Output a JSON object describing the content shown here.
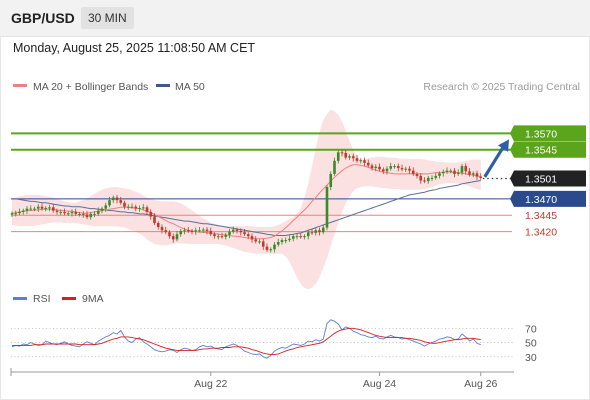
{
  "header": {
    "symbol": "GBP/USD",
    "timeframe": "30 MIN"
  },
  "datetime": "Monday, August 25, 2025 11:08:50 AM CET",
  "price_panel": {
    "legend": [
      {
        "name": "MA 20 + Bollinger Bands",
        "color": "#f08080"
      },
      {
        "name": "MA 50",
        "color": "#3a5a8c"
      }
    ],
    "credit": "Research © 2025 Trading Central"
  },
  "rsi_panel": {
    "legend": [
      {
        "name": "RSI",
        "color": "#5b7fd4"
      },
      {
        "name": "9MA",
        "color": "#d62020"
      }
    ]
  },
  "colors": {
    "resistance": "#5aa51c",
    "support_major": "#2b4a8e",
    "support_minor": "#f08080",
    "support_minor_text": "#c0392b",
    "current": "#333333",
    "arrow": "#2f5ea8",
    "candle_up": "#3a8a2a",
    "candle_down": "#c0392b",
    "band_fill": "#fadcdc",
    "rsi_line": "#5b7fd4",
    "rsi_ma": "#d62020"
  },
  "chart_data": [
    {
      "type": "candlestick",
      "title": "GBP/USD",
      "ylim": [
        1.3343,
        1.3627
      ],
      "x_ticks": [
        "Aug 22",
        "Aug 24",
        "Aug 26"
      ],
      "levels": [
        {
          "label": "1.3570",
          "value": 1.357,
          "kind": "resistance"
        },
        {
          "label": "1.3545",
          "value": 1.3545,
          "kind": "resistance"
        },
        {
          "label": "1.3501",
          "value": 1.3501,
          "kind": "current"
        },
        {
          "label": "1.3470",
          "value": 1.347,
          "kind": "support_major"
        },
        {
          "label": "1.3445",
          "value": 1.3445,
          "kind": "support_minor"
        },
        {
          "label": "1.3420",
          "value": 1.342,
          "kind": "support_minor"
        }
      ],
      "close": [
        1.3448,
        1.3448,
        1.345,
        1.3452,
        1.3455,
        1.3455,
        1.3455,
        1.3458,
        1.3455,
        1.3456,
        1.3457,
        1.3452,
        1.345,
        1.345,
        1.3448,
        1.3448,
        1.345,
        1.3447,
        1.3447,
        1.3446,
        1.3442,
        1.3447,
        1.3447,
        1.3452,
        1.3455,
        1.346,
        1.3468,
        1.3472,
        1.3468,
        1.3464,
        1.3458,
        1.3458,
        1.3458,
        1.3455,
        1.3456,
        1.3457,
        1.345,
        1.3443,
        1.3433,
        1.3427,
        1.3422,
        1.3419,
        1.3413,
        1.3408,
        1.3416,
        1.3421,
        1.3422,
        1.3421,
        1.342,
        1.3422,
        1.3422,
        1.3423,
        1.3421,
        1.3416,
        1.3413,
        1.3413,
        1.3412,
        1.3415,
        1.342,
        1.3423,
        1.3421,
        1.3419,
        1.3416,
        1.3413,
        1.3408,
        1.3405,
        1.3405,
        1.3397,
        1.3392,
        1.3393,
        1.34,
        1.3404,
        1.3407,
        1.3407,
        1.3409,
        1.3413,
        1.3413,
        1.3412,
        1.3413,
        1.3419,
        1.3418,
        1.3422,
        1.3419,
        1.3426,
        1.3488,
        1.3508,
        1.3528,
        1.3541,
        1.354,
        1.3533,
        1.3535,
        1.3532,
        1.3528,
        1.3529,
        1.3525,
        1.3521,
        1.3517,
        1.3519,
        1.3515,
        1.3512,
        1.3516,
        1.352,
        1.352,
        1.3517,
        1.3515,
        1.3516,
        1.3513,
        1.3508,
        1.3505,
        1.3498,
        1.3497,
        1.3502,
        1.3502,
        1.3505,
        1.3509,
        1.3511,
        1.3513,
        1.3513,
        1.3508,
        1.351,
        1.352,
        1.3512,
        1.3507,
        1.3509,
        1.3504,
        1.3502
      ],
      "ma20": [
        1.3448,
        1.3449,
        1.345,
        1.3451,
        1.3452,
        1.3452,
        1.3453,
        1.3453,
        1.3454,
        1.3454,
        1.3454,
        1.3454,
        1.3453,
        1.3452,
        1.3452,
        1.3451,
        1.3451,
        1.345,
        1.3449,
        1.3448,
        1.3448,
        1.3449,
        1.345,
        1.3451,
        1.3452,
        1.3453,
        1.3454,
        1.3455,
        1.3456,
        1.3457,
        1.3457,
        1.3457,
        1.3456,
        1.3456,
        1.3455,
        1.3453,
        1.3451,
        1.3449,
        1.3446,
        1.3443,
        1.344,
        1.3437,
        1.3434,
        1.3432,
        1.3429,
        1.3426,
        1.3424,
        1.3422,
        1.3421,
        1.342,
        1.3419,
        1.3419,
        1.3418,
        1.3418,
        1.3417,
        1.3416,
        1.3415,
        1.3415,
        1.3414,
        1.3413,
        1.3413,
        1.3412,
        1.3411,
        1.341,
        1.341,
        1.3409,
        1.3409,
        1.3409,
        1.341,
        1.3411,
        1.3413,
        1.3417,
        1.3421,
        1.3426,
        1.3431,
        1.3437,
        1.3442,
        1.3448,
        1.3453,
        1.3459,
        1.3466,
        1.3472,
        1.3479,
        1.3485,
        1.3491,
        1.3497,
        1.3503,
        1.3508,
        1.3513,
        1.3517,
        1.352,
        1.3522,
        1.3522,
        1.3521,
        1.352,
        1.3518,
        1.3516,
        1.3514,
        1.3512,
        1.3511,
        1.351,
        1.3509,
        1.3508,
        1.3508,
        1.3508,
        1.3508,
        1.3508,
        1.3508,
        1.3508,
        1.3508,
        1.3508,
        1.3508,
        1.3509,
        1.351,
        1.351,
        1.3511,
        1.3511,
        1.3511,
        1.351,
        1.351,
        1.3509,
        1.3508,
        1.3507,
        1.3506,
        1.3505,
        1.3504
      ],
      "ma50": [
        1.347,
        1.347,
        1.3469,
        1.3468,
        1.3467,
        1.3466,
        1.3466,
        1.3465,
        1.3464,
        1.3464,
        1.3463,
        1.3462,
        1.3461,
        1.346,
        1.3459,
        1.3459,
        1.3458,
        1.3458,
        1.3458,
        1.3457,
        1.3456,
        1.3455,
        1.3455,
        1.3454,
        1.3454,
        1.3453,
        1.3452,
        1.3452,
        1.3451,
        1.345,
        1.345,
        1.3449,
        1.3449,
        1.3448,
        1.3447,
        1.3447,
        1.3446,
        1.3445,
        1.3444,
        1.3443,
        1.3442,
        1.3441,
        1.344,
        1.3439,
        1.3438,
        1.3437,
        1.3436,
        1.3436,
        1.3435,
        1.3434,
        1.3433,
        1.3432,
        1.3432,
        1.3431,
        1.343,
        1.3429,
        1.3428,
        1.3427,
        1.3426,
        1.3425,
        1.3424,
        1.3423,
        1.3422,
        1.3421,
        1.342,
        1.3419,
        1.3418,
        1.3417,
        1.3416,
        1.3415,
        1.3414,
        1.3414,
        1.3414,
        1.3414,
        1.3415,
        1.3416,
        1.3417,
        1.3418,
        1.342,
        1.3422,
        1.3424,
        1.3426,
        1.3428,
        1.343,
        1.3432,
        1.3434,
        1.3436,
        1.3438,
        1.344,
        1.3442,
        1.3444,
        1.3446,
        1.3448,
        1.345,
        1.3452,
        1.3454,
        1.3456,
        1.3458,
        1.346,
        1.3462,
        1.3464,
        1.3466,
        1.3468,
        1.347,
        1.3472,
        1.3474,
        1.3476,
        1.3477,
        1.3478,
        1.3479,
        1.348,
        1.3482,
        1.3483,
        1.3484,
        1.3486,
        1.3487,
        1.3488,
        1.3489,
        1.349,
        1.3491,
        1.3493,
        1.3494,
        1.3495,
        1.3496,
        1.3497,
        1.3498
      ],
      "bb_upper": [
        1.347,
        1.3472,
        1.3474,
        1.3475,
        1.3476,
        1.3476,
        1.3476,
        1.3476,
        1.3475,
        1.3474,
        1.3473,
        1.3472,
        1.347,
        1.3468,
        1.3466,
        1.3465,
        1.3464,
        1.3464,
        1.3466,
        1.3468,
        1.347,
        1.3474,
        1.3478,
        1.3481,
        1.3484,
        1.3486,
        1.3487,
        1.3488,
        1.3488,
        1.3487,
        1.3486,
        1.3485,
        1.3483,
        1.3481,
        1.3478,
        1.3475,
        1.3472,
        1.347,
        1.3468,
        1.3467,
        1.3466,
        1.3466,
        1.3466,
        1.3466,
        1.3465,
        1.3463,
        1.346,
        1.3456,
        1.3452,
        1.3448,
        1.3444,
        1.344,
        1.3437,
        1.3434,
        1.3432,
        1.343,
        1.3429,
        1.3428,
        1.3428,
        1.3428,
        1.3428,
        1.3428,
        1.3428,
        1.3428,
        1.3428,
        1.3427,
        1.3427,
        1.3427,
        1.3427,
        1.3427,
        1.3428,
        1.343,
        1.3433,
        1.3436,
        1.3439,
        1.3442,
        1.3447,
        1.3456,
        1.3472,
        1.3494,
        1.352,
        1.3548,
        1.3572,
        1.359,
        1.36,
        1.3606,
        1.3604,
        1.3598,
        1.3588,
        1.3574,
        1.3558,
        1.3544,
        1.3534,
        1.353,
        1.353,
        1.3532,
        1.3533,
        1.3534,
        1.3534,
        1.3534,
        1.3533,
        1.3533,
        1.3533,
        1.3532,
        1.3531,
        1.3531,
        1.3531,
        1.3531,
        1.3531,
        1.3531,
        1.353,
        1.3529,
        1.3528,
        1.3527,
        1.3526,
        1.3526,
        1.3525,
        1.3525,
        1.3525,
        1.3526,
        1.3527,
        1.3528,
        1.3529,
        1.353,
        1.353,
        1.353
      ],
      "bb_lower": [
        1.343,
        1.3429,
        1.3428,
        1.3428,
        1.3428,
        1.3428,
        1.3429,
        1.343,
        1.3431,
        1.3432,
        1.3433,
        1.3434,
        1.3434,
        1.3434,
        1.3433,
        1.3433,
        1.3433,
        1.3433,
        1.3432,
        1.3431,
        1.343,
        1.3429,
        1.3428,
        1.3428,
        1.3428,
        1.3428,
        1.3428,
        1.3428,
        1.3428,
        1.3427,
        1.3426,
        1.3424,
        1.3422,
        1.342,
        1.3417,
        1.3413,
        1.3408,
        1.3404,
        1.3401,
        1.34,
        1.3399,
        1.3399,
        1.34,
        1.3401,
        1.3402,
        1.3402,
        1.3402,
        1.3401,
        1.3401,
        1.3401,
        1.3401,
        1.3401,
        1.3401,
        1.3401,
        1.3401,
        1.3401,
        1.34,
        1.3399,
        1.3397,
        1.3395,
        1.3393,
        1.3391,
        1.3389,
        1.3388,
        1.3387,
        1.3386,
        1.3386,
        1.3386,
        1.3386,
        1.3386,
        1.3386,
        1.3386,
        1.3386,
        1.3382,
        1.3374,
        1.3362,
        1.335,
        1.334,
        1.3334,
        1.3332,
        1.3334,
        1.334,
        1.335,
        1.3364,
        1.338,
        1.3398,
        1.3416,
        1.3434,
        1.345,
        1.3463,
        1.3474,
        1.3482,
        1.3486,
        1.3488,
        1.3489,
        1.3489,
        1.3489,
        1.3488,
        1.3487,
        1.3486,
        1.3486,
        1.3485,
        1.3485,
        1.3485,
        1.3484,
        1.3484,
        1.3484,
        1.3484,
        1.3484,
        1.3484,
        1.3485,
        1.3486,
        1.3488,
        1.349,
        1.3492,
        1.3493,
        1.3494,
        1.3494,
        1.3494,
        1.3493,
        1.3492,
        1.3491,
        1.3489,
        1.3487,
        1.3485,
        1.3483
      ]
    },
    {
      "type": "line",
      "ylim": [
        17,
        93
      ],
      "y_ticks": [
        70,
        50,
        30
      ],
      "series": [
        {
          "name": "RSI",
          "values": [
            44,
            46,
            45,
            48,
            47,
            50,
            48,
            46,
            47,
            52,
            50,
            48,
            47,
            49,
            51,
            48,
            46,
            45,
            44,
            48,
            51,
            49,
            47,
            52,
            55,
            58,
            60,
            64,
            62,
            67,
            58,
            52,
            50,
            55,
            57,
            51,
            48,
            44,
            40,
            38,
            37,
            38,
            40,
            39,
            36,
            40,
            42,
            41,
            39,
            40,
            44,
            46,
            44,
            45,
            42,
            41,
            40,
            44,
            46,
            48,
            46,
            42,
            38,
            36,
            34,
            33,
            34,
            30,
            28,
            32,
            38,
            41,
            43,
            42,
            45,
            48,
            47,
            46,
            48,
            52,
            51,
            54,
            52,
            55,
            77,
            82,
            80,
            76,
            68,
            72,
            70,
            66,
            64,
            61,
            60,
            58,
            57,
            59,
            56,
            55,
            58,
            60,
            58,
            57,
            55,
            56,
            54,
            52,
            50,
            48,
            45,
            48,
            50,
            52,
            55,
            56,
            58,
            57,
            54,
            55,
            62,
            58,
            52,
            55,
            49,
            47
          ]
        },
        {
          "name": "9MA",
          "values": [
            46,
            46,
            46,
            46,
            46,
            46,
            47,
            47,
            47,
            48,
            48,
            48,
            48,
            48,
            48,
            48,
            48,
            48,
            47,
            47,
            47,
            47,
            47,
            48,
            49,
            51,
            53,
            55,
            56,
            58,
            58,
            58,
            57,
            56,
            55,
            54,
            52,
            50,
            48,
            46,
            44,
            42,
            41,
            40,
            39,
            39,
            39,
            39,
            39,
            39,
            40,
            41,
            41,
            42,
            42,
            42,
            43,
            43,
            43,
            44,
            44,
            44,
            43,
            42,
            40,
            39,
            37,
            35,
            34,
            33,
            33,
            34,
            36,
            38,
            40,
            41,
            43,
            44,
            45,
            46,
            47,
            48,
            49,
            51,
            55,
            59,
            63,
            66,
            68,
            69,
            70,
            70,
            69,
            68,
            66,
            64,
            62,
            60,
            59,
            58,
            57,
            57,
            57,
            57,
            57,
            56,
            56,
            55,
            54,
            53,
            51,
            50,
            49,
            49,
            50,
            51,
            52,
            53,
            54,
            54,
            55,
            56,
            56,
            56,
            55,
            54
          ]
        }
      ]
    }
  ]
}
